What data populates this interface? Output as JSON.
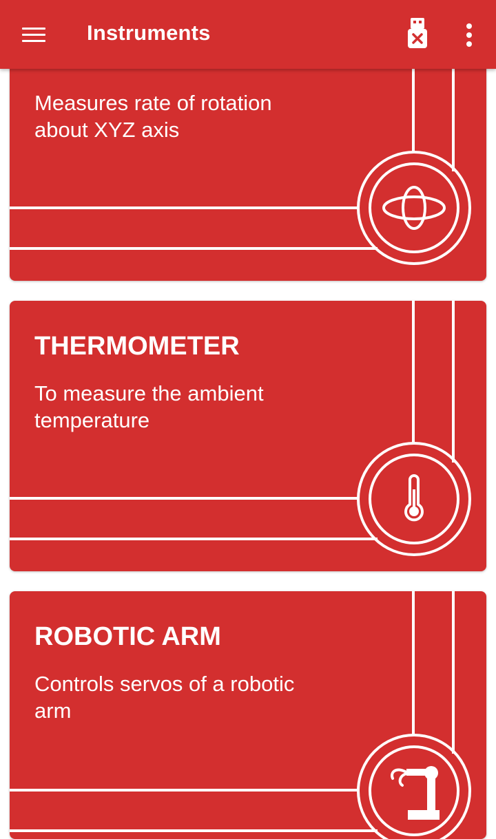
{
  "app_bar": {
    "title": "Instruments",
    "menu_icon": "hamburger-menu-icon",
    "usb_icon": "usb-disconnected-icon",
    "overflow_icon": "more-vertical-icon"
  },
  "colors": {
    "primary": "#d32f2f",
    "on_primary": "#ffffff",
    "background": "#ffffff"
  },
  "cards": [
    {
      "title": "",
      "description": "Measures rate of rotation about XYZ axis",
      "icon": "gyroscope-icon"
    },
    {
      "title": "THERMOMETER",
      "description": "To measure the ambient temperature",
      "icon": "thermometer-icon"
    },
    {
      "title": "ROBOTIC ARM",
      "description": "Controls servos of a robotic arm",
      "icon": "robotic-arm-icon"
    }
  ]
}
